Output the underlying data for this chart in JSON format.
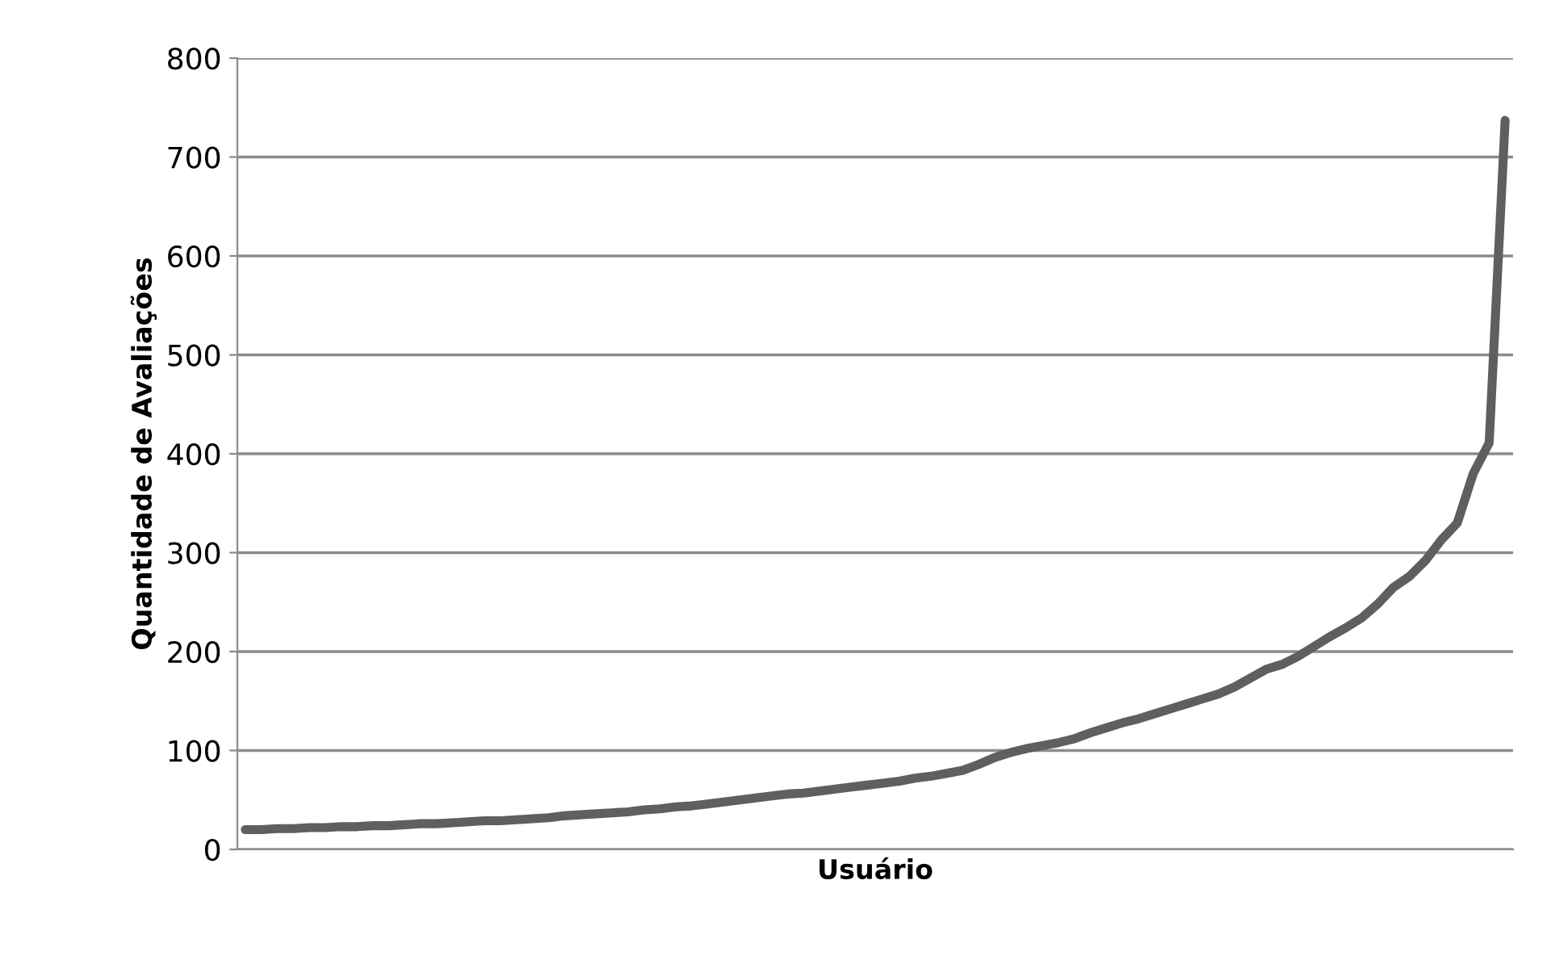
{
  "chart_data": {
    "type": "line",
    "xlabel": "Usuário",
    "ylabel": "Quantidade de Avaliações",
    "categories": [
      null,
      null,
      null,
      null,
      null,
      null,
      null,
      null,
      null,
      null,
      null,
      null,
      null,
      null,
      null,
      null,
      null,
      null,
      null,
      null,
      null,
      null,
      null,
      null,
      null,
      null,
      null,
      null,
      null,
      null,
      null,
      null,
      null,
      null,
      null,
      null,
      null,
      null,
      null,
      null,
      null,
      null,
      null,
      null,
      null,
      null,
      null,
      null,
      null,
      null,
      null,
      null,
      null,
      null,
      null,
      null,
      null,
      null,
      null,
      null,
      null,
      null,
      null,
      null,
      null,
      null,
      null,
      null,
      null,
      null,
      null,
      null,
      null,
      null,
      null,
      null,
      null,
      null,
      null,
      null
    ],
    "series": [
      {
        "color": "#5f5f5f",
        "values": [
          20,
          20,
          21,
          21,
          22,
          22,
          23,
          23,
          24,
          24,
          25,
          26,
          26,
          27,
          28,
          29,
          29,
          30,
          31,
          32,
          34,
          35,
          36,
          37,
          38,
          40,
          41,
          43,
          44,
          46,
          48,
          50,
          52,
          54,
          56,
          57,
          59,
          61,
          63,
          65,
          67,
          69,
          72,
          74,
          77,
          80,
          86,
          93,
          98,
          102,
          105,
          108,
          112,
          118,
          123,
          128,
          132,
          137,
          142,
          147,
          152,
          157,
          164,
          173,
          182,
          187,
          195,
          205,
          215,
          224,
          234,
          248,
          265,
          276,
          292,
          313,
          330,
          380,
          411,
          737
        ]
      }
    ],
    "ylim": [
      0,
      800
    ],
    "yticks": [
      0,
      100,
      200,
      300,
      400,
      500,
      600,
      700,
      800
    ],
    "grid": "y",
    "tick_labels": "y",
    "marker": "none",
    "line_style": "solid",
    "legend": false
  }
}
